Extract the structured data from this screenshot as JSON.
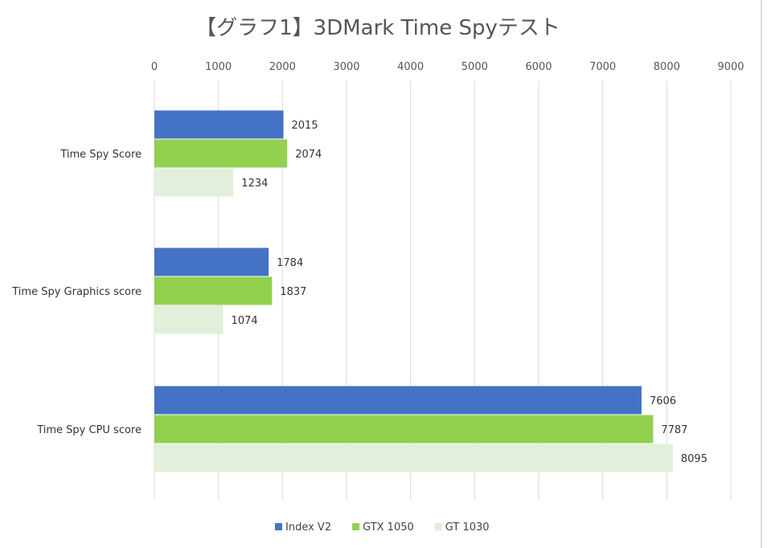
{
  "chart_data": {
    "type": "bar",
    "orientation": "horizontal",
    "title": "【グラフ1】3DMark Time Spyテスト",
    "categories": [
      "Time Spy Score",
      "Time Spy Graphics score",
      "Time Spy CPU score"
    ],
    "series": [
      {
        "name": "Index V2",
        "color": "#4472c4",
        "values": [
          2015,
          1784,
          7606
        ]
      },
      {
        "name": "GTX 1050",
        "color": "#92d050",
        "values": [
          2074,
          1837,
          7787
        ]
      },
      {
        "name": "GT 1030",
        "color": "#e2efda",
        "values": [
          1234,
          1074,
          8095
        ]
      }
    ],
    "xlim": [
      0,
      9000
    ],
    "xticks": [
      0,
      1000,
      2000,
      3000,
      4000,
      5000,
      6000,
      7000,
      8000,
      9000
    ],
    "grid": true,
    "xaxis_position": "top",
    "legend_position": "bottom"
  }
}
